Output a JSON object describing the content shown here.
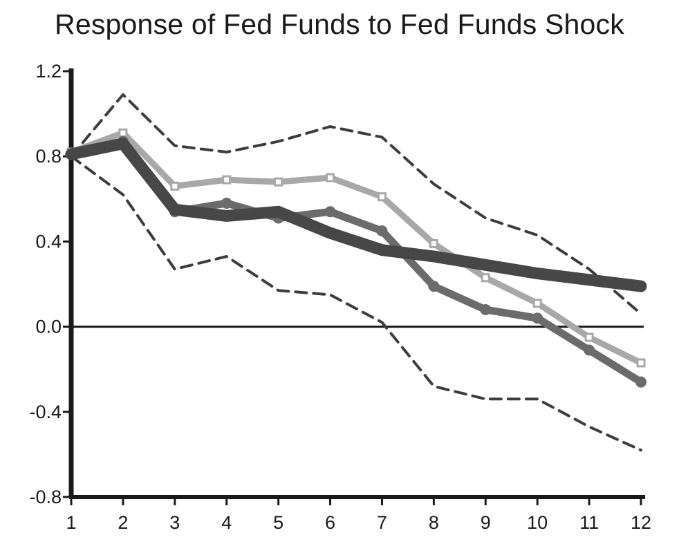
{
  "chart_data": {
    "type": "line",
    "title": "Response of Fed Funds to Fed Funds Shock",
    "xlabel": "",
    "ylabel": "",
    "x": [
      1,
      2,
      3,
      4,
      5,
      6,
      7,
      8,
      9,
      10,
      11,
      12
    ],
    "xlim": [
      1,
      12
    ],
    "ylim": [
      -0.8,
      1.2
    ],
    "yticks": [
      "1.2",
      "0.8",
      "0.4",
      "0.0",
      "-0.4",
      "-0.8"
    ],
    "xticks": [
      "1",
      "2",
      "3",
      "4",
      "5",
      "6",
      "7",
      "8",
      "9",
      "10",
      "11",
      "12"
    ],
    "zero_line": true,
    "grid": false,
    "legend": "none",
    "series": [
      {
        "key": "upper_band",
        "style": "dashed",
        "color": "#3d3d3d",
        "values": [
          0.8,
          1.09,
          0.85,
          0.82,
          0.87,
          0.94,
          0.89,
          0.67,
          0.51,
          0.43,
          0.27,
          0.06
        ]
      },
      {
        "key": "lower_band",
        "style": "dashed",
        "color": "#3d3d3d",
        "values": [
          0.8,
          0.62,
          0.27,
          0.33,
          0.17,
          0.15,
          0.02,
          -0.28,
          -0.34,
          -0.34,
          -0.47,
          -0.58
        ]
      },
      {
        "key": "light_squares",
        "style": "square-markers",
        "color": "#a8a8a8",
        "values": [
          0.82,
          0.91,
          0.66,
          0.69,
          0.68,
          0.7,
          0.61,
          0.39,
          0.23,
          0.11,
          -0.05,
          -0.17
        ]
      },
      {
        "key": "medium_circles",
        "style": "circle-markers",
        "color": "#6b6b6b",
        "values": [
          0.81,
          0.87,
          0.54,
          0.58,
          0.51,
          0.54,
          0.45,
          0.19,
          0.08,
          0.04,
          -0.11,
          -0.26
        ]
      },
      {
        "key": "thick_dark",
        "style": "thick",
        "color": "#474747",
        "values": [
          0.81,
          0.86,
          0.55,
          0.52,
          0.54,
          0.44,
          0.36,
          0.33,
          0.29,
          0.25,
          0.22,
          0.19
        ]
      }
    ]
  }
}
